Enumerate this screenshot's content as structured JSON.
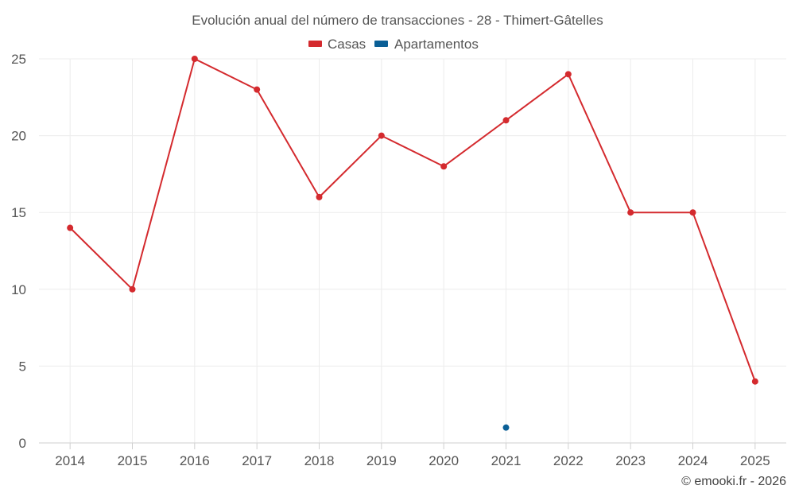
{
  "chart_data": {
    "type": "line",
    "title": "Evolución anual del número de transacciones - 28 - Thimert-Gâtelles",
    "categories": [
      "2014",
      "2015",
      "2016",
      "2017",
      "2018",
      "2019",
      "2020",
      "2021",
      "2022",
      "2023",
      "2024",
      "2025"
    ],
    "series": [
      {
        "name": "Casas",
        "color": "#d42a2e",
        "values": [
          14,
          10,
          25,
          23,
          16,
          20,
          18,
          21,
          24,
          15,
          15,
          4
        ]
      },
      {
        "name": "Apartamentos",
        "color": "#0a5f96",
        "values": [
          null,
          null,
          null,
          null,
          null,
          null,
          null,
          1,
          null,
          null,
          null,
          null
        ]
      }
    ],
    "ylim": [
      0,
      25
    ],
    "yticks": [
      "0",
      "5",
      "10",
      "15",
      "20",
      "25"
    ],
    "xlabel": "",
    "ylabel": "",
    "grid": true,
    "legend_position": "top-center"
  },
  "credit": "© emooki.fr - 2026"
}
